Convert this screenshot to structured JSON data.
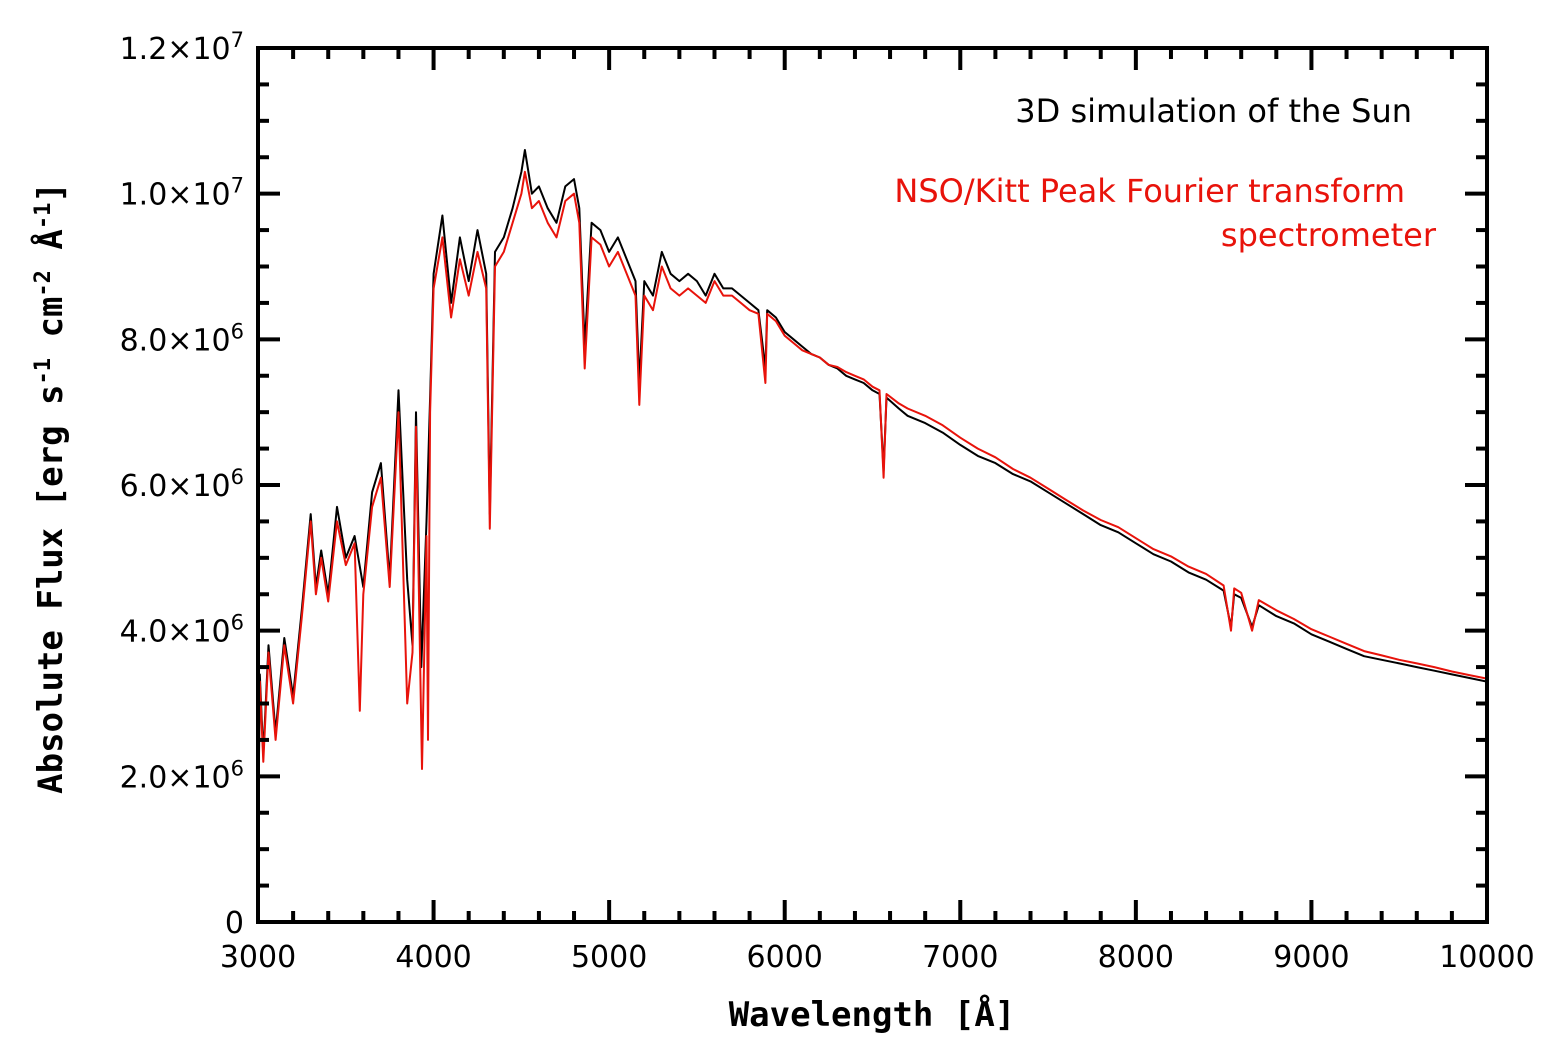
{
  "chart_data": {
    "type": "line",
    "title": "",
    "xlabel": "Wavelength [Å]",
    "ylabel": "Absolute Flux [erg s⁻¹ cm⁻² Å⁻¹]",
    "ylabel_parts": {
      "main": "Absolute Flux [erg s",
      "exp1": "-1",
      "mid": " cm",
      "exp2": "-2",
      "end": " Å",
      "exp3": "-1",
      "close": "]"
    },
    "xlim": [
      3000,
      10000
    ],
    "ylim": [
      0,
      12000000
    ],
    "x_ticks": [
      "3000",
      "4000",
      "5000",
      "6000",
      "7000",
      "8000",
      "9000",
      "10000"
    ],
    "y_ticks": [
      {
        "value": 0,
        "mantissa": "0",
        "exp": ""
      },
      {
        "value": 2000000,
        "mantissa": "2.0×10",
        "exp": "6"
      },
      {
        "value": 4000000,
        "mantissa": "4.0×10",
        "exp": "6"
      },
      {
        "value": 6000000,
        "mantissa": "6.0×10",
        "exp": "6"
      },
      {
        "value": 8000000,
        "mantissa": "8.0×10",
        "exp": "6"
      },
      {
        "value": 10000000,
        "mantissa": "1.0×10",
        "exp": "7"
      },
      {
        "value": 12000000,
        "mantissa": "1.2×10",
        "exp": "7"
      }
    ],
    "legend": [
      {
        "lines": [
          "3D simulation of the Sun"
        ],
        "color": "#000000"
      },
      {
        "lines": [
          "NSO/Kitt Peak Fourier transform",
          "spectrometer"
        ],
        "color": "#e8130b"
      }
    ],
    "series": [
      {
        "name": "3D simulation of the Sun",
        "color": "#000000",
        "points": [
          [
            3000,
            0.9
          ],
          [
            3010,
            3.4
          ],
          [
            3030,
            2.3
          ],
          [
            3060,
            3.8
          ],
          [
            3100,
            2.6
          ],
          [
            3150,
            3.9
          ],
          [
            3200,
            3.1
          ],
          [
            3250,
            4.3
          ],
          [
            3300,
            5.6
          ],
          [
            3330,
            4.6
          ],
          [
            3360,
            5.1
          ],
          [
            3400,
            4.5
          ],
          [
            3450,
            5.7
          ],
          [
            3500,
            5.0
          ],
          [
            3550,
            5.3
          ],
          [
            3600,
            4.6
          ],
          [
            3650,
            5.9
          ],
          [
            3700,
            6.3
          ],
          [
            3750,
            4.7
          ],
          [
            3800,
            7.3
          ],
          [
            3850,
            4.7
          ],
          [
            3880,
            3.8
          ],
          [
            3900,
            7.0
          ],
          [
            3930,
            3.5
          ],
          [
            3960,
            5.5
          ],
          [
            3980,
            7.2
          ],
          [
            4000,
            8.9
          ],
          [
            4050,
            9.7
          ],
          [
            4100,
            8.5
          ],
          [
            4150,
            9.4
          ],
          [
            4200,
            8.8
          ],
          [
            4250,
            9.5
          ],
          [
            4300,
            8.9
          ],
          [
            4320,
            5.6
          ],
          [
            4350,
            9.2
          ],
          [
            4400,
            9.4
          ],
          [
            4450,
            9.8
          ],
          [
            4500,
            10.3
          ],
          [
            4520,
            10.6
          ],
          [
            4560,
            10.0
          ],
          [
            4600,
            10.1
          ],
          [
            4650,
            9.8
          ],
          [
            4700,
            9.6
          ],
          [
            4750,
            10.1
          ],
          [
            4800,
            10.2
          ],
          [
            4830,
            9.8
          ],
          [
            4861,
            7.9
          ],
          [
            4900,
            9.6
          ],
          [
            4950,
            9.5
          ],
          [
            5000,
            9.2
          ],
          [
            5050,
            9.4
          ],
          [
            5100,
            9.1
          ],
          [
            5150,
            8.8
          ],
          [
            5172,
            7.4
          ],
          [
            5200,
            8.8
          ],
          [
            5250,
            8.6
          ],
          [
            5300,
            9.2
          ],
          [
            5350,
            8.9
          ],
          [
            5400,
            8.8
          ],
          [
            5450,
            8.9
          ],
          [
            5500,
            8.8
          ],
          [
            5550,
            8.6
          ],
          [
            5600,
            8.9
          ],
          [
            5650,
            8.7
          ],
          [
            5700,
            8.7
          ],
          [
            5750,
            8.6
          ],
          [
            5800,
            8.5
          ],
          [
            5850,
            8.4
          ],
          [
            5890,
            7.6
          ],
          [
            5900,
            8.4
          ],
          [
            5950,
            8.3
          ],
          [
            6000,
            8.1
          ],
          [
            6050,
            8.0
          ],
          [
            6100,
            7.9
          ],
          [
            6150,
            7.8
          ],
          [
            6200,
            7.75
          ],
          [
            6250,
            7.65
          ],
          [
            6300,
            7.6
          ],
          [
            6350,
            7.5
          ],
          [
            6400,
            7.45
          ],
          [
            6450,
            7.4
          ],
          [
            6500,
            7.3
          ],
          [
            6540,
            7.25
          ],
          [
            6563,
            6.2
          ],
          [
            6580,
            7.2
          ],
          [
            6650,
            7.05
          ],
          [
            6700,
            6.95
          ],
          [
            6800,
            6.85
          ],
          [
            6900,
            6.72
          ],
          [
            7000,
            6.55
          ],
          [
            7100,
            6.4
          ],
          [
            7200,
            6.3
          ],
          [
            7300,
            6.15
          ],
          [
            7400,
            6.05
          ],
          [
            7500,
            5.9
          ],
          [
            7600,
            5.75
          ],
          [
            7700,
            5.6
          ],
          [
            7800,
            5.45
          ],
          [
            7900,
            5.35
          ],
          [
            8000,
            5.2
          ],
          [
            8100,
            5.05
          ],
          [
            8200,
            4.95
          ],
          [
            8300,
            4.8
          ],
          [
            8400,
            4.7
          ],
          [
            8500,
            4.55
          ],
          [
            8542,
            4.05
          ],
          [
            8560,
            4.5
          ],
          [
            8600,
            4.45
          ],
          [
            8662,
            4.05
          ],
          [
            8700,
            4.35
          ],
          [
            8800,
            4.2
          ],
          [
            8900,
            4.1
          ],
          [
            9000,
            3.95
          ],
          [
            9100,
            3.85
          ],
          [
            9200,
            3.75
          ],
          [
            9300,
            3.65
          ],
          [
            9400,
            3.6
          ],
          [
            9500,
            3.55
          ],
          [
            9600,
            3.5
          ],
          [
            9700,
            3.45
          ],
          [
            9800,
            3.4
          ],
          [
            9900,
            3.35
          ],
          [
            10000,
            3.3
          ]
        ]
      },
      {
        "name": "NSO/Kitt Peak Fourier transform spectrometer",
        "color": "#e8130b",
        "points": [
          [
            3000,
            1.1
          ],
          [
            3010,
            3.3
          ],
          [
            3030,
            2.2
          ],
          [
            3060,
            3.7
          ],
          [
            3100,
            2.5
          ],
          [
            3150,
            3.8
          ],
          [
            3200,
            3.0
          ],
          [
            3250,
            4.2
          ],
          [
            3300,
            5.5
          ],
          [
            3330,
            4.5
          ],
          [
            3360,
            5.0
          ],
          [
            3400,
            4.4
          ],
          [
            3450,
            5.5
          ],
          [
            3500,
            4.9
          ],
          [
            3550,
            5.2
          ],
          [
            3580,
            2.9
          ],
          [
            3600,
            4.5
          ],
          [
            3650,
            5.7
          ],
          [
            3700,
            6.1
          ],
          [
            3750,
            4.6
          ],
          [
            3800,
            7.0
          ],
          [
            3850,
            3.0
          ],
          [
            3880,
            3.7
          ],
          [
            3900,
            6.8
          ],
          [
            3934,
            2.1
          ],
          [
            3960,
            5.3
          ],
          [
            3968,
            2.5
          ],
          [
            3980,
            7.0
          ],
          [
            4000,
            8.7
          ],
          [
            4050,
            9.4
          ],
          [
            4100,
            8.3
          ],
          [
            4150,
            9.1
          ],
          [
            4200,
            8.6
          ],
          [
            4250,
            9.2
          ],
          [
            4300,
            8.7
          ],
          [
            4320,
            5.4
          ],
          [
            4350,
            9.0
          ],
          [
            4400,
            9.2
          ],
          [
            4450,
            9.6
          ],
          [
            4500,
            10.0
          ],
          [
            4520,
            10.3
          ],
          [
            4560,
            9.8
          ],
          [
            4600,
            9.9
          ],
          [
            4650,
            9.6
          ],
          [
            4700,
            9.4
          ],
          [
            4750,
            9.9
          ],
          [
            4800,
            10.0
          ],
          [
            4830,
            9.6
          ],
          [
            4861,
            7.6
          ],
          [
            4900,
            9.4
          ],
          [
            4950,
            9.3
          ],
          [
            5000,
            9.0
          ],
          [
            5050,
            9.2
          ],
          [
            5100,
            8.9
          ],
          [
            5150,
            8.6
          ],
          [
            5172,
            7.1
          ],
          [
            5200,
            8.6
          ],
          [
            5250,
            8.4
          ],
          [
            5300,
            9.0
          ],
          [
            5350,
            8.7
          ],
          [
            5400,
            8.6
          ],
          [
            5450,
            8.7
          ],
          [
            5500,
            8.6
          ],
          [
            5550,
            8.5
          ],
          [
            5600,
            8.8
          ],
          [
            5650,
            8.6
          ],
          [
            5700,
            8.6
          ],
          [
            5750,
            8.5
          ],
          [
            5800,
            8.4
          ],
          [
            5850,
            8.35
          ],
          [
            5890,
            7.4
          ],
          [
            5900,
            8.35
          ],
          [
            5950,
            8.25
          ],
          [
            6000,
            8.05
          ],
          [
            6050,
            7.95
          ],
          [
            6100,
            7.85
          ],
          [
            6150,
            7.8
          ],
          [
            6200,
            7.75
          ],
          [
            6250,
            7.65
          ],
          [
            6300,
            7.62
          ],
          [
            6350,
            7.55
          ],
          [
            6400,
            7.5
          ],
          [
            6450,
            7.45
          ],
          [
            6500,
            7.35
          ],
          [
            6540,
            7.3
          ],
          [
            6563,
            6.1
          ],
          [
            6580,
            7.25
          ],
          [
            6650,
            7.12
          ],
          [
            6700,
            7.05
          ],
          [
            6800,
            6.95
          ],
          [
            6900,
            6.82
          ],
          [
            7000,
            6.65
          ],
          [
            7100,
            6.5
          ],
          [
            7200,
            6.38
          ],
          [
            7300,
            6.22
          ],
          [
            7400,
            6.1
          ],
          [
            7500,
            5.95
          ],
          [
            7600,
            5.8
          ],
          [
            7700,
            5.65
          ],
          [
            7800,
            5.52
          ],
          [
            7900,
            5.42
          ],
          [
            8000,
            5.27
          ],
          [
            8100,
            5.12
          ],
          [
            8200,
            5.02
          ],
          [
            8300,
            4.88
          ],
          [
            8400,
            4.78
          ],
          [
            8500,
            4.62
          ],
          [
            8542,
            4.0
          ],
          [
            8560,
            4.58
          ],
          [
            8600,
            4.52
          ],
          [
            8662,
            4.0
          ],
          [
            8700,
            4.42
          ],
          [
            8800,
            4.28
          ],
          [
            8900,
            4.16
          ],
          [
            9000,
            4.02
          ],
          [
            9100,
            3.92
          ],
          [
            9200,
            3.82
          ],
          [
            9300,
            3.72
          ],
          [
            9400,
            3.66
          ],
          [
            9500,
            3.6
          ],
          [
            9600,
            3.55
          ],
          [
            9700,
            3.5
          ],
          [
            9800,
            3.44
          ],
          [
            9900,
            3.39
          ],
          [
            10000,
            3.34
          ]
        ]
      }
    ]
  }
}
